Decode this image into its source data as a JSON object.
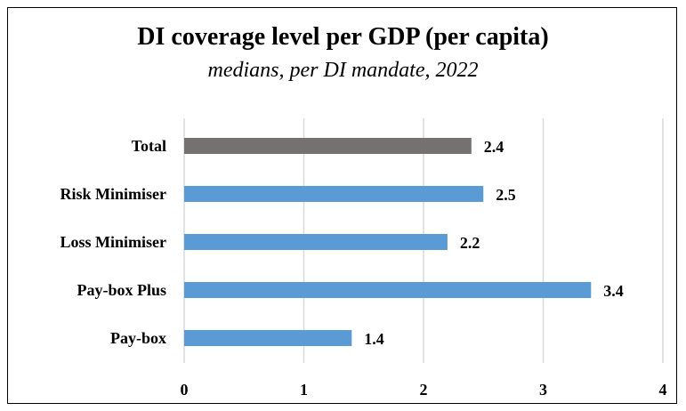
{
  "chart_data": {
    "type": "bar",
    "orientation": "horizontal",
    "title": "DI coverage level per GDP (per capita)",
    "subtitle": "medians, per DI mandate, 2022",
    "categories": [
      "Total",
      "Risk Minimiser",
      "Loss Minimiser",
      "Pay-box Plus",
      "Pay-box"
    ],
    "values": [
      2.4,
      2.5,
      2.2,
      3.4,
      1.4
    ],
    "value_labels": [
      "2.4",
      "2.5",
      "2.2",
      "3.4",
      "1.4"
    ],
    "bar_colors": [
      "#767171",
      "#5b9bd5",
      "#5b9bd5",
      "#5b9bd5",
      "#5b9bd5"
    ],
    "xlim": [
      0,
      4
    ],
    "x_ticks": [
      "0",
      "1",
      "2",
      "3",
      "4"
    ],
    "grid": "vertical",
    "legend": "none",
    "xlabel": "",
    "ylabel": ""
  }
}
